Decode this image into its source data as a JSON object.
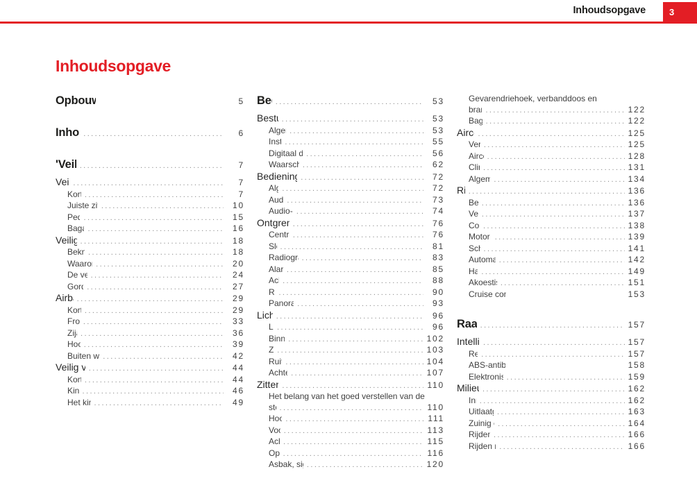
{
  "header": {
    "section_label": "Inhoudsopgave",
    "page_number": "3"
  },
  "title": "Inhoudsopgave",
  "colors": {
    "accent_red": "#e31e25",
    "heading_text": "#1d1d1b",
    "item_text": "#3f3f3f",
    "dot_leader": "#8c8c8c"
  },
  "toc_columns": [
    {
      "entries": [
        {
          "t": "major",
          "l": "Opbouw van dit instructieboekje",
          "p": "5",
          "dots": false
        },
        {
          "t": "major",
          "l": "Inhoudsoverzicht",
          "p": "6"
        },
        {
          "t": "major",
          "l": "'Veilig op weg'",
          "p": "7"
        },
        {
          "t": "section",
          "l": "Veilig rijden",
          "p": "7"
        },
        {
          "t": "item",
          "l": "Korte inleiding",
          "p": "7"
        },
        {
          "t": "item",
          "l": "Juiste zithouding van de inzittenden",
          "p": "10"
        },
        {
          "t": "item",
          "l": "Pedaalbereik",
          "p": "15"
        },
        {
          "t": "item",
          "l": "Bagage opbergen",
          "p": "16"
        },
        {
          "t": "section",
          "l": "Veiligheidsgordels",
          "p": "18"
        },
        {
          "t": "item",
          "l": "Beknopte inleiding",
          "p": "18"
        },
        {
          "t": "item",
          "l": "Waarom veiligheidsgordels?",
          "p": "20"
        },
        {
          "t": "item",
          "l": "De veiligheidsgordels",
          "p": "24"
        },
        {
          "t": "item",
          "l": "Gordelspanners*",
          "p": "27"
        },
        {
          "t": "section",
          "l": "Airbagsysteem",
          "p": "29"
        },
        {
          "t": "item",
          "l": "Korte inleiding",
          "p": "29"
        },
        {
          "t": "item",
          "l": "Frontairbags",
          "p": "33"
        },
        {
          "t": "item",
          "l": "Zijairbags",
          "p": "36"
        },
        {
          "t": "item",
          "l": "Hoofdairbags",
          "p": "39"
        },
        {
          "t": "item",
          "l": "Buiten werking stellen van de airbags*",
          "p": "42"
        },
        {
          "t": "section",
          "l": "Veilig vervoer van kinderen",
          "p": "44"
        },
        {
          "t": "item",
          "l": "Korte inleiding",
          "p": "44"
        },
        {
          "t": "item",
          "l": "Kinderzitjes",
          "p": "46"
        },
        {
          "t": "item",
          "l": "Het kinderzitje bevestigen",
          "p": "49"
        }
      ]
    },
    {
      "entries": [
        {
          "t": "major",
          "l": "Bediening",
          "p": "53"
        },
        {
          "t": "section",
          "l": "Bestuurdersruimte",
          "p": "53"
        },
        {
          "t": "item",
          "l": "Algemeen schema",
          "p": "53"
        },
        {
          "t": "item",
          "l": "Instrumenten",
          "p": "55"
        },
        {
          "t": "item",
          "l": "Digitaal display in het instrumentenpaneel",
          "p": "56"
        },
        {
          "t": "item",
          "l": "Waarschuwings- en controlelampjes",
          "p": "62"
        },
        {
          "t": "section",
          "l": "Bedieningselementen op de stuurkolom*",
          "p": "72"
        },
        {
          "t": "item",
          "l": "Algemeen",
          "p": "72"
        },
        {
          "t": "item",
          "l": "Audiobediening",
          "p": "73"
        },
        {
          "t": "item",
          "l": "Audio- + Telefoonbediening",
          "p": "74"
        },
        {
          "t": "section",
          "l": "Ontgrendelen en vergrendelen",
          "p": "76"
        },
        {
          "t": "item",
          "l": "Centrale vergrendeling",
          "p": "76"
        },
        {
          "t": "item",
          "l": "Sleutels",
          "p": "81"
        },
        {
          "t": "item",
          "l": "Radiografische afstandsbediening*",
          "p": "83"
        },
        {
          "t": "item",
          "l": "Alarmsysteem*",
          "p": "85"
        },
        {
          "t": "item",
          "l": "Achterklep",
          "p": "88"
        },
        {
          "t": "item",
          "l": "Ruiten",
          "p": "90"
        },
        {
          "t": "item",
          "l": "Panoramisch dak kanteldak*",
          "p": "93"
        },
        {
          "t": "section",
          "l": "Licht en zicht",
          "p": "96"
        },
        {
          "t": "item",
          "l": "Licht",
          "p": "96"
        },
        {
          "t": "item",
          "l": "Binnenverlichting",
          "p": "102"
        },
        {
          "t": "item",
          "l": "Zicht",
          "p": "103"
        },
        {
          "t": "item",
          "l": "Ruitenwissers",
          "p": "104"
        },
        {
          "t": "item",
          "l": "Achteruitkijkspiegels",
          "p": "107"
        },
        {
          "t": "section",
          "l": "Zitten en opbergen",
          "p": "110"
        },
        {
          "t": "item",
          "l": "Het belang van het goed verstellen van de",
          "l2": "stoelen",
          "p": "110"
        },
        {
          "t": "item",
          "l": "Hoofdsteunen",
          "p": "111"
        },
        {
          "t": "item",
          "l": "Voorstoelen",
          "p": "113"
        },
        {
          "t": "item",
          "l": "Achterbank",
          "p": "115"
        },
        {
          "t": "item",
          "l": "Opbergvak",
          "p": "116"
        },
        {
          "t": "item",
          "l": "Asbak, sigarettenaansteker en stopcontact",
          "p": "120"
        }
      ]
    },
    {
      "entries": [
        {
          "t": "item",
          "l": "Gevarendriehoek, verbanddoos en",
          "l2": "brandblusser*",
          "p": "122"
        },
        {
          "t": "item",
          "l": "Bagageruimte",
          "p": "122"
        },
        {
          "t": "section",
          "l": "Airconditioning",
          "p": "125"
        },
        {
          "t": "item",
          "l": "Verwarming",
          "p": "125"
        },
        {
          "t": "item",
          "l": "Airconditioning*",
          "p": "128"
        },
        {
          "t": "item",
          "l": "Climatronic",
          "p": "131"
        },
        {
          "t": "item",
          "l": "Algemene aanwijzingen",
          "p": "134"
        },
        {
          "t": "section",
          "l": "Rijden",
          "p": "136"
        },
        {
          "t": "item",
          "l": "Besturing",
          "p": "136"
        },
        {
          "t": "item",
          "l": "Veiligheid",
          "p": "137"
        },
        {
          "t": "item",
          "l": "Contactslot",
          "p": "138"
        },
        {
          "t": "item",
          "l": "Motor starten en afzetten",
          "p": "139"
        },
        {
          "t": "item",
          "l": "Schakelbak",
          "p": "141"
        },
        {
          "t": "item",
          "l": "Automatische versnellingsbak*",
          "p": "142"
        },
        {
          "t": "item",
          "l": "Handrem",
          "p": "149"
        },
        {
          "t": "item",
          "l": "Akoestisch parkeerhulpsysteem*",
          "p": "151"
        },
        {
          "t": "item",
          "l": "Cruise control* (Snelheidsregelsysteem - GRA)",
          "p": "153",
          "dots": false
        },
        {
          "t": "major",
          "l": "Raad en daad",
          "p": "157"
        },
        {
          "t": "section",
          "l": "Intelligente techniek",
          "p": "157"
        },
        {
          "t": "item",
          "l": "Remmen",
          "p": "157"
        },
        {
          "t": "item",
          "l": "ABS-antiblokkeersysteem met antislipregeling",
          "p": "158",
          "dots": false
        },
        {
          "t": "item",
          "l": "Elektronisch stabiliteitsprogramma (ESP)*",
          "p": "159"
        },
        {
          "t": "section",
          "l": "Milieubewust rijden",
          "p": "162"
        },
        {
          "t": "item",
          "l": "Inrijden",
          "p": "162"
        },
        {
          "t": "item",
          "l": "Uitlaatgasreinigingssysteem",
          "p": "163"
        },
        {
          "t": "item",
          "l": "Zuinig en milieubewust rijden",
          "p": "164"
        },
        {
          "t": "item",
          "l": "Rijden in het buitenland",
          "p": "166"
        },
        {
          "t": "item",
          "l": "Rijden met een aanhangwagen",
          "p": "166"
        }
      ]
    }
  ]
}
